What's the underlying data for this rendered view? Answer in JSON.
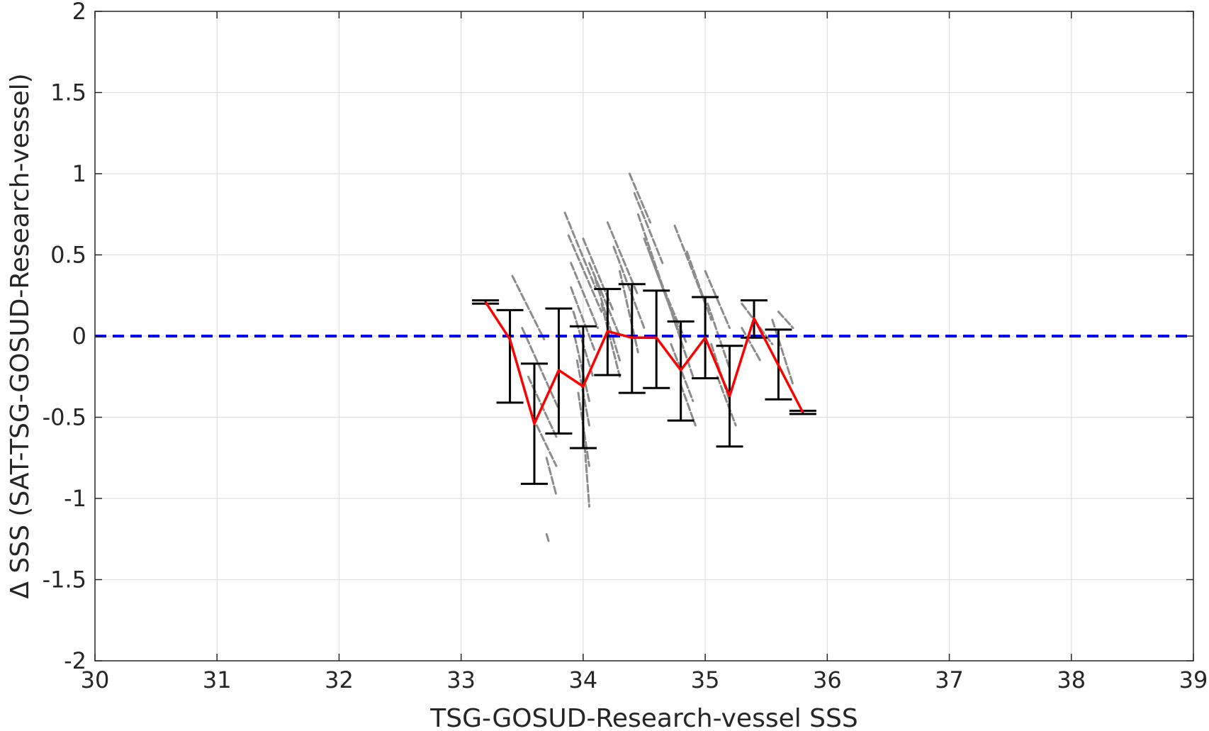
{
  "chart_data": {
    "type": "scatter",
    "xlabel": "TSG-GOSUD-Research-vessel SSS",
    "ylabel": "Δ SSS (SAT-TSG-GOSUD-Research-vessel)",
    "xlim": [
      30,
      39
    ],
    "ylim": [
      -2,
      2
    ],
    "x_ticks": [
      "30",
      "31",
      "32",
      "33",
      "34",
      "35",
      "36",
      "37",
      "38",
      "39"
    ],
    "y_ticks": [
      "2",
      "1.5",
      "1",
      "0.5",
      "0",
      "-0.5",
      "-1",
      "-1.5",
      "-2"
    ],
    "grid": true,
    "reference_line": {
      "y": 0,
      "style": "dashed",
      "color": "#0000ff"
    },
    "colors": {
      "scatter": "#8c8c8c",
      "mean_line": "#ff0000",
      "error_bars": "#000000",
      "grid": "#e0e0e0",
      "axes": "#262626"
    },
    "scatter_segments": [
      [
        33.42,
        0.37,
        33.68,
        -0.02
      ],
      [
        33.5,
        0.05,
        33.8,
        -0.45
      ],
      [
        33.55,
        -0.25,
        33.78,
        -0.62
      ],
      [
        33.62,
        -0.55,
        33.78,
        -0.8
      ],
      [
        33.7,
        -0.75,
        33.78,
        -0.98
      ],
      [
        33.7,
        -1.22,
        33.72,
        -1.27
      ],
      [
        33.85,
        0.76,
        34.1,
        0.3
      ],
      [
        33.88,
        0.62,
        34.15,
        0.15
      ],
      [
        33.9,
        0.45,
        34.12,
        0.05
      ],
      [
        33.9,
        0.3,
        34.1,
        -0.1
      ],
      [
        33.92,
        0.15,
        34.08,
        -0.25
      ],
      [
        33.93,
        0.0,
        34.05,
        -0.4
      ],
      [
        33.95,
        -0.15,
        34.05,
        -0.55
      ],
      [
        33.96,
        -0.35,
        34.05,
        -0.8
      ],
      [
        34.0,
        -0.55,
        34.05,
        -1.05
      ],
      [
        34.0,
        0.6,
        34.25,
        0.15
      ],
      [
        34.05,
        0.45,
        34.3,
        0.0
      ],
      [
        34.1,
        0.35,
        34.3,
        -0.15
      ],
      [
        34.15,
        0.2,
        34.3,
        -0.25
      ],
      [
        34.2,
        0.7,
        34.45,
        0.25
      ],
      [
        34.25,
        0.55,
        34.5,
        0.05
      ],
      [
        34.3,
        0.4,
        34.45,
        -0.1
      ],
      [
        34.38,
        1.0,
        34.55,
        0.7
      ],
      [
        34.42,
        0.88,
        34.65,
        0.45
      ],
      [
        34.45,
        0.75,
        34.7,
        0.2
      ],
      [
        34.5,
        0.6,
        34.75,
        0.1
      ],
      [
        34.55,
        0.5,
        34.8,
        0.0
      ],
      [
        34.6,
        0.4,
        34.85,
        -0.05
      ],
      [
        34.75,
        0.68,
        35.0,
        0.2
      ],
      [
        34.85,
        0.52,
        35.05,
        0.1
      ],
      [
        34.7,
        0.2,
        34.9,
        -0.25
      ],
      [
        34.72,
        -0.05,
        34.9,
        -0.4
      ],
      [
        34.8,
        -0.3,
        34.92,
        -0.55
      ],
      [
        35.0,
        0.4,
        35.2,
        0.05
      ],
      [
        35.02,
        0.2,
        35.2,
        -0.2
      ],
      [
        35.05,
        -0.05,
        35.2,
        -0.4
      ],
      [
        35.1,
        -0.25,
        35.25,
        -0.55
      ],
      [
        35.3,
        0.2,
        35.55,
        -0.05
      ],
      [
        35.3,
        0.05,
        35.45,
        -0.15
      ],
      [
        35.55,
        0.1,
        35.72,
        -0.3
      ],
      [
        35.6,
        0.15,
        35.72,
        0.05
      ]
    ],
    "error_bars": [
      {
        "x": 33.2,
        "lower": 0.2,
        "upper": 0.22
      },
      {
        "x": 33.4,
        "lower": -0.41,
        "upper": 0.16
      },
      {
        "x": 33.6,
        "lower": -0.91,
        "upper": -0.17
      },
      {
        "x": 33.8,
        "lower": -0.6,
        "upper": 0.17
      },
      {
        "x": 34.0,
        "lower": -0.69,
        "upper": 0.06
      },
      {
        "x": 34.2,
        "lower": -0.24,
        "upper": 0.29
      },
      {
        "x": 34.4,
        "lower": -0.35,
        "upper": 0.32
      },
      {
        "x": 34.6,
        "lower": -0.32,
        "upper": 0.28
      },
      {
        "x": 34.8,
        "lower": -0.52,
        "upper": 0.09
      },
      {
        "x": 35.0,
        "lower": -0.26,
        "upper": 0.24
      },
      {
        "x": 35.2,
        "lower": -0.68,
        "upper": -0.06
      },
      {
        "x": 35.4,
        "lower": -0.01,
        "upper": 0.22
      },
      {
        "x": 35.6,
        "lower": -0.39,
        "upper": 0.04
      },
      {
        "x": 35.8,
        "lower": -0.48,
        "upper": -0.46
      }
    ],
    "mean_line": {
      "x": [
        33.2,
        33.4,
        33.6,
        33.8,
        34.0,
        34.2,
        34.4,
        34.6,
        34.8,
        35.0,
        35.2,
        35.4,
        35.6,
        35.8
      ],
      "y": [
        0.21,
        -0.02,
        -0.54,
        -0.21,
        -0.31,
        0.03,
        -0.01,
        -0.01,
        -0.21,
        -0.01,
        -0.37,
        0.11,
        -0.18,
        -0.47
      ]
    }
  }
}
